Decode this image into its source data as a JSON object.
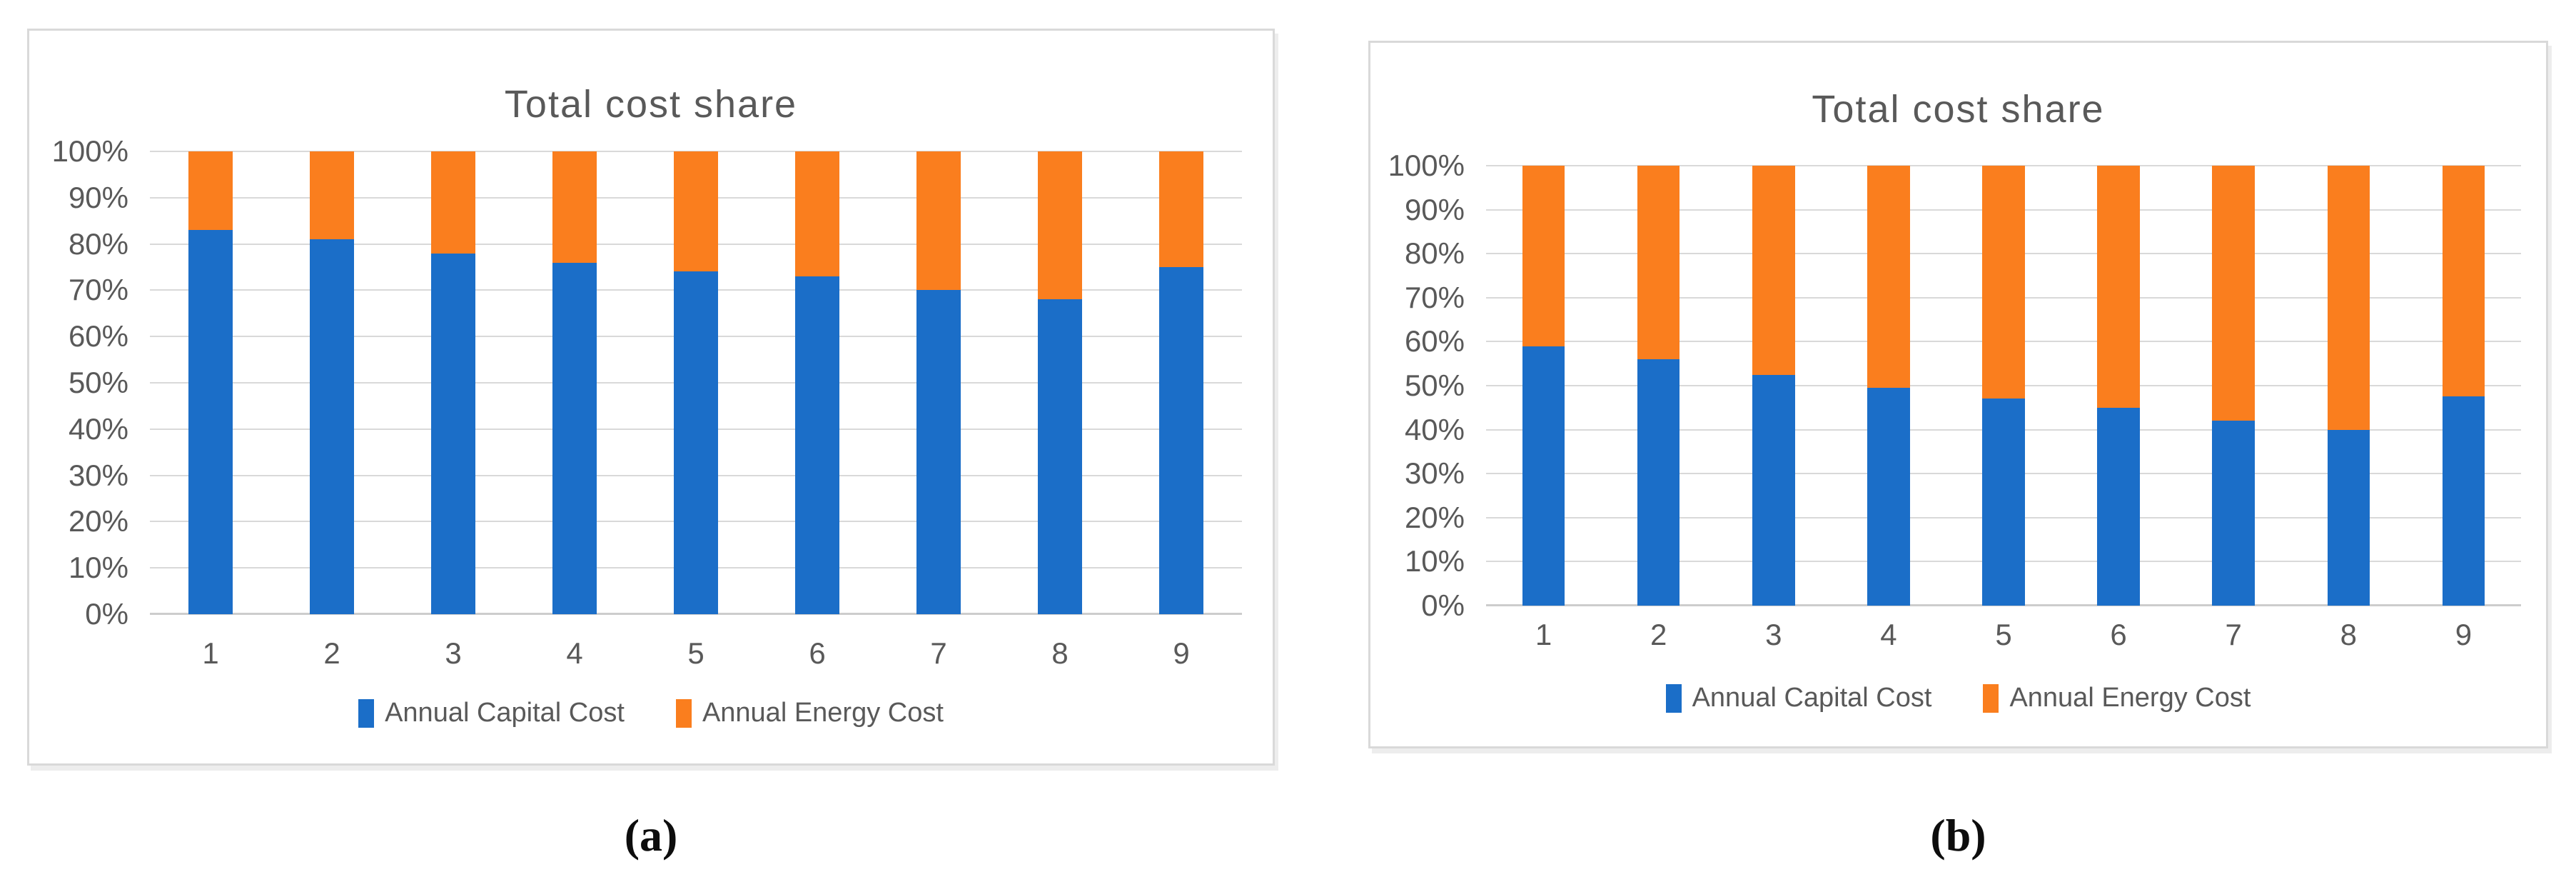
{
  "page": {
    "background": "#ffffff"
  },
  "colors": {
    "text_gray": "#595959",
    "gridline": "#d9d9d9",
    "panel_border": "#d9d9d9",
    "capital_blue": "#1b6ec8",
    "energy_orange": "#fa7e1e"
  },
  "captions": {
    "a": "(a)",
    "b": "(b)"
  },
  "chart_data": [
    {
      "id": "a",
      "type": "bar",
      "stacked": true,
      "title": "Total cost share",
      "categories": [
        "1",
        "2",
        "3",
        "4",
        "5",
        "6",
        "7",
        "8",
        "9"
      ],
      "series": [
        {
          "name": "Annual Capital Cost",
          "color": "#1b6ec8",
          "values": [
            83,
            81,
            78,
            76,
            74,
            73,
            70,
            68,
            75
          ]
        },
        {
          "name": "Annual Energy Cost",
          "color": "#fa7e1e",
          "values": [
            17,
            19,
            22,
            24,
            26,
            27,
            30,
            32,
            25
          ]
        }
      ],
      "xlabel": "",
      "ylabel": "",
      "ylim": [
        0,
        100
      ],
      "y_tick_labels": [
        "0%",
        "10%",
        "20%",
        "30%",
        "40%",
        "50%",
        "60%",
        "70%",
        "80%",
        "90%",
        "100%"
      ],
      "grid": true,
      "legend_position": "bottom"
    },
    {
      "id": "b",
      "type": "bar",
      "stacked": true,
      "title": "Total cost share",
      "categories": [
        "1",
        "2",
        "3",
        "4",
        "5",
        "6",
        "7",
        "8",
        "9"
      ],
      "series": [
        {
          "name": "Annual Capital Cost",
          "color": "#1b6ec8",
          "values": [
            59,
            56,
            52.5,
            49.5,
            47,
            45,
            42,
            40,
            47.5
          ]
        },
        {
          "name": "Annual Energy Cost",
          "color": "#fa7e1e",
          "values": [
            41,
            44,
            47.5,
            50.5,
            53,
            55,
            58,
            60,
            52.5
          ]
        }
      ],
      "xlabel": "",
      "ylabel": "",
      "ylim": [
        0,
        100
      ],
      "y_tick_labels": [
        "0%",
        "10%",
        "20%",
        "30%",
        "40%",
        "50%",
        "60%",
        "70%",
        "80%",
        "90%",
        "100%"
      ],
      "grid": true,
      "legend_position": "bottom"
    }
  ]
}
